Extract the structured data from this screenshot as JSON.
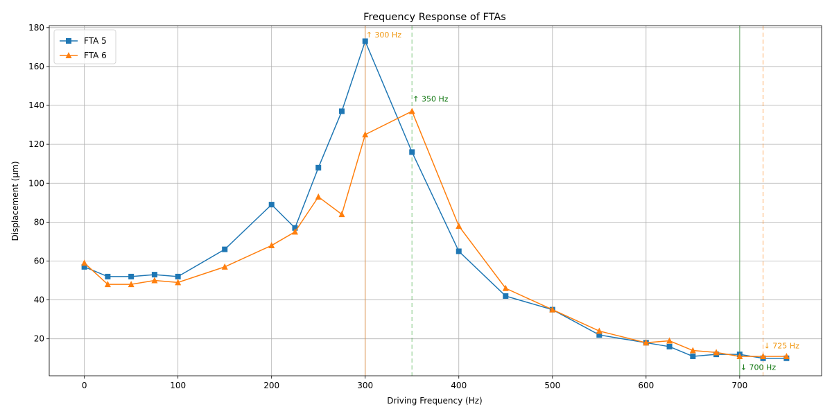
{
  "chart_data": {
    "type": "line",
    "title": "Frequency Response of FTAs",
    "xlabel": "Driving Frequency (Hz)",
    "ylabel": "Displacement (µm)",
    "xlim": [
      -37.5,
      787.5
    ],
    "ylim": [
      1,
      181
    ],
    "xticks": [
      0,
      100,
      200,
      300,
      400,
      500,
      600,
      700
    ],
    "yticks": [
      20,
      40,
      60,
      80,
      100,
      120,
      140,
      160,
      180
    ],
    "grid": true,
    "legend_position": "top-left",
    "series": [
      {
        "name": "FTA 5",
        "color": "#1f77b4",
        "marker": "square",
        "x": [
          0,
          25,
          50,
          75,
          100,
          150,
          200,
          225,
          250,
          275,
          300,
          350,
          400,
          450,
          500,
          550,
          600,
          625,
          650,
          675,
          700,
          725,
          750
        ],
        "y": [
          57,
          52,
          52,
          53,
          52,
          66,
          89,
          77,
          108,
          137,
          173,
          116,
          65,
          42,
          35,
          22,
          18,
          16,
          11,
          12,
          12,
          10,
          10
        ]
      },
      {
        "name": "FTA 6",
        "color": "#ff7f0e",
        "marker": "triangle",
        "x": [
          0,
          25,
          50,
          75,
          100,
          150,
          200,
          225,
          250,
          275,
          300,
          350,
          400,
          450,
          500,
          550,
          600,
          625,
          650,
          675,
          700,
          725,
          750
        ],
        "y": [
          59,
          48,
          48,
          50,
          49,
          57,
          68,
          75,
          93,
          84,
          125,
          137,
          78,
          46,
          35,
          24,
          18,
          19,
          14,
          13,
          11,
          11,
          11
        ]
      }
    ],
    "reference_lines": [
      {
        "x": 300,
        "color": "#ff7f0e",
        "style": "solid",
        "label": "↑ 300 Hz",
        "label_y": 175
      },
      {
        "x": 350,
        "color": "#2ca02c",
        "style": "dashed",
        "label": "↑ 350 Hz",
        "label_y": 142
      },
      {
        "x": 700,
        "color": "#2ca02c",
        "style": "solid",
        "label": "↓ 700 Hz",
        "label_y": 4
      },
      {
        "x": 725,
        "color": "#ff7f0e",
        "style": "dashed",
        "label": "↓ 725 Hz",
        "label_y": 15
      }
    ]
  }
}
